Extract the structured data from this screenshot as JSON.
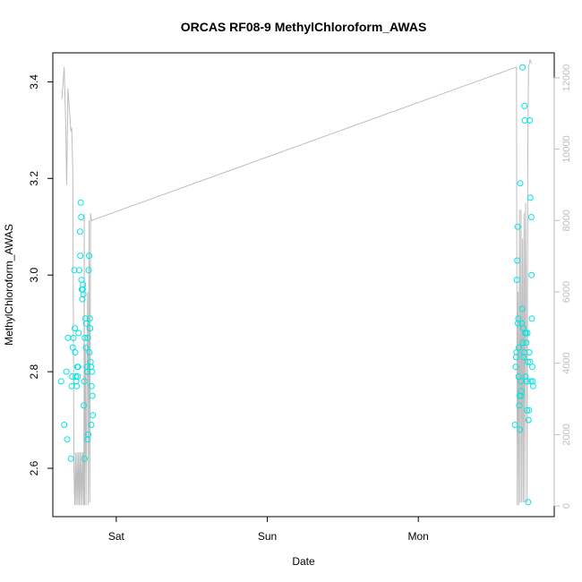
{
  "chart_data": {
    "type": "scatter",
    "title": "ORCAS RF08-9 MethylChloroform_AWAS",
    "xlabel": "Date",
    "ylabel": "MethylChloroform_AWAS",
    "x_ticks": [
      {
        "label": "Sat",
        "value": 0
      },
      {
        "label": "Sun",
        "value": 1
      },
      {
        "label": "Mon",
        "value": 2
      }
    ],
    "xlim": [
      -0.42,
      2.9
    ],
    "ylim": [
      2.5,
      3.46
    ],
    "y_ticks": [
      2.6,
      2.8,
      3.0,
      3.2,
      3.4
    ],
    "y2lim": [
      -300,
      12700
    ],
    "y2_ticks": [
      0,
      2000,
      4000,
      6000,
      8000,
      10000,
      12000
    ],
    "grid": false,
    "colors": {
      "points": "#00e5e5",
      "altitude_line": "#bdbdbd"
    },
    "series": [
      {
        "role": "points",
        "points": [
          [
            -0.365,
            2.78
          ],
          [
            -0.345,
            2.69
          ],
          [
            -0.33,
            2.8
          ],
          [
            -0.325,
            2.66
          ],
          [
            -0.32,
            2.87
          ],
          [
            -0.3,
            2.62
          ],
          [
            -0.295,
            2.77
          ],
          [
            -0.292,
            2.79
          ],
          [
            -0.288,
            2.85
          ],
          [
            -0.283,
            2.87
          ],
          [
            -0.278,
            3.01
          ],
          [
            -0.275,
            2.89
          ],
          [
            -0.272,
            2.84
          ],
          [
            -0.268,
            2.79
          ],
          [
            -0.265,
            2.78
          ],
          [
            -0.262,
            2.77
          ],
          [
            -0.258,
            2.81
          ],
          [
            -0.255,
            2.79
          ],
          [
            -0.252,
            2.81
          ],
          [
            -0.25,
            2.88
          ],
          [
            -0.245,
            3.01
          ],
          [
            -0.24,
            3.09
          ],
          [
            -0.238,
            3.04
          ],
          [
            -0.235,
            3.15
          ],
          [
            -0.232,
            3.12
          ],
          [
            -0.23,
            2.99
          ],
          [
            -0.228,
            2.97
          ],
          [
            -0.225,
            2.95
          ],
          [
            -0.222,
            2.97
          ],
          [
            -0.22,
            2.98
          ],
          [
            -0.218,
            2.96
          ],
          [
            -0.215,
            2.73
          ],
          [
            -0.212,
            2.78
          ],
          [
            -0.21,
            2.62
          ],
          [
            -0.208,
            2.87
          ],
          [
            -0.205,
            2.91
          ],
          [
            -0.2,
            2.85
          ],
          [
            -0.198,
            2.9
          ],
          [
            -0.195,
            2.81
          ],
          [
            -0.192,
            2.8
          ],
          [
            -0.19,
            2.66
          ],
          [
            -0.188,
            2.87
          ],
          [
            -0.185,
            2.67
          ],
          [
            -0.183,
            3.01
          ],
          [
            -0.18,
            3.04
          ],
          [
            -0.178,
            2.84
          ],
          [
            -0.175,
            2.91
          ],
          [
            -0.173,
            2.89
          ],
          [
            -0.17,
            2.82
          ],
          [
            -0.168,
            2.81
          ],
          [
            -0.165,
            2.69
          ],
          [
            -0.163,
            2.77
          ],
          [
            -0.16,
            2.8
          ],
          [
            -0.158,
            2.75
          ],
          [
            -0.155,
            2.71
          ],
          [
            2.64,
            2.69
          ],
          [
            2.645,
            2.81
          ],
          [
            2.648,
            2.83
          ],
          [
            2.65,
            2.84
          ],
          [
            2.652,
            2.99
          ],
          [
            2.655,
            3.03
          ],
          [
            2.658,
            3.1
          ],
          [
            2.66,
            2.9
          ],
          [
            2.662,
            2.91
          ],
          [
            2.664,
            2.79
          ],
          [
            2.666,
            2.85
          ],
          [
            2.668,
            2.73
          ],
          [
            2.67,
            2.75
          ],
          [
            2.673,
            2.68
          ],
          [
            2.675,
            3.19
          ],
          [
            2.678,
            2.78
          ],
          [
            2.68,
            2.75
          ],
          [
            2.682,
            2.76
          ],
          [
            2.685,
            2.9
          ],
          [
            2.688,
            2.93
          ],
          [
            2.69,
            3.43
          ],
          [
            2.692,
            2.86
          ],
          [
            2.695,
            2.89
          ],
          [
            2.697,
            2.83
          ],
          [
            2.7,
            2.84
          ],
          [
            2.703,
            3.35
          ],
          [
            2.705,
            3.32
          ],
          [
            2.708,
            2.88
          ],
          [
            2.71,
            2.79
          ],
          [
            2.712,
            2.88
          ],
          [
            2.715,
            2.86
          ],
          [
            2.718,
            2.78
          ],
          [
            2.72,
            2.72
          ],
          [
            2.722,
            2.88
          ],
          [
            2.725,
            2.82
          ],
          [
            2.727,
            2.53
          ],
          [
            2.73,
            2.7
          ],
          [
            2.733,
            2.72
          ],
          [
            2.735,
            2.84
          ],
          [
            2.738,
            3.32
          ],
          [
            2.74,
            2.82
          ],
          [
            2.742,
            3.16
          ],
          [
            2.745,
            2.78
          ],
          [
            2.748,
            3.12
          ],
          [
            2.75,
            3.0
          ],
          [
            2.752,
            2.91
          ],
          [
            2.755,
            2.81
          ],
          [
            2.758,
            2.78
          ],
          [
            2.76,
            2.77
          ]
        ]
      },
      {
        "role": "line",
        "points": [
          [
            -0.36,
            11400
          ],
          [
            -0.345,
            12300
          ],
          [
            -0.335,
            10800
          ],
          [
            -0.328,
            9000
          ],
          [
            -0.32,
            11700
          ],
          [
            -0.3,
            10500
          ],
          [
            -0.295,
            10600
          ],
          [
            -0.288,
            9400
          ],
          [
            -0.28,
            1000
          ],
          [
            -0.275,
            20
          ],
          [
            -0.27,
            1500
          ],
          [
            -0.265,
            20
          ],
          [
            -0.26,
            1500
          ],
          [
            -0.255,
            20
          ],
          [
            -0.25,
            1500
          ],
          [
            -0.245,
            20
          ],
          [
            -0.24,
            1500
          ],
          [
            -0.235,
            20
          ],
          [
            -0.23,
            1500
          ],
          [
            -0.225,
            20
          ],
          [
            -0.22,
            1500
          ],
          [
            -0.215,
            20
          ],
          [
            -0.212,
            8200
          ],
          [
            -0.21,
            20
          ],
          [
            -0.205,
            4500
          ],
          [
            -0.2,
            20
          ],
          [
            -0.195,
            3500
          ],
          [
            -0.19,
            6000
          ],
          [
            -0.185,
            20
          ],
          [
            -0.18,
            8000
          ],
          [
            -0.175,
            100
          ],
          [
            -0.17,
            8200
          ],
          [
            -0.165,
            8000
          ],
          [
            2.65,
            12300
          ],
          [
            2.655,
            20
          ],
          [
            2.66,
            6000
          ],
          [
            2.665,
            20
          ],
          [
            2.67,
            8300
          ],
          [
            2.675,
            100
          ],
          [
            2.68,
            8300
          ],
          [
            2.685,
            100
          ],
          [
            2.69,
            7500
          ],
          [
            2.695,
            100
          ],
          [
            2.7,
            8200
          ],
          [
            2.705,
            100
          ],
          [
            2.71,
            8500
          ],
          [
            2.715,
            6000
          ],
          [
            2.72,
            100
          ],
          [
            2.725,
            10000
          ],
          [
            2.73,
            12300
          ],
          [
            2.74,
            12500
          ],
          [
            2.75,
            12400
          ]
        ]
      }
    ]
  }
}
